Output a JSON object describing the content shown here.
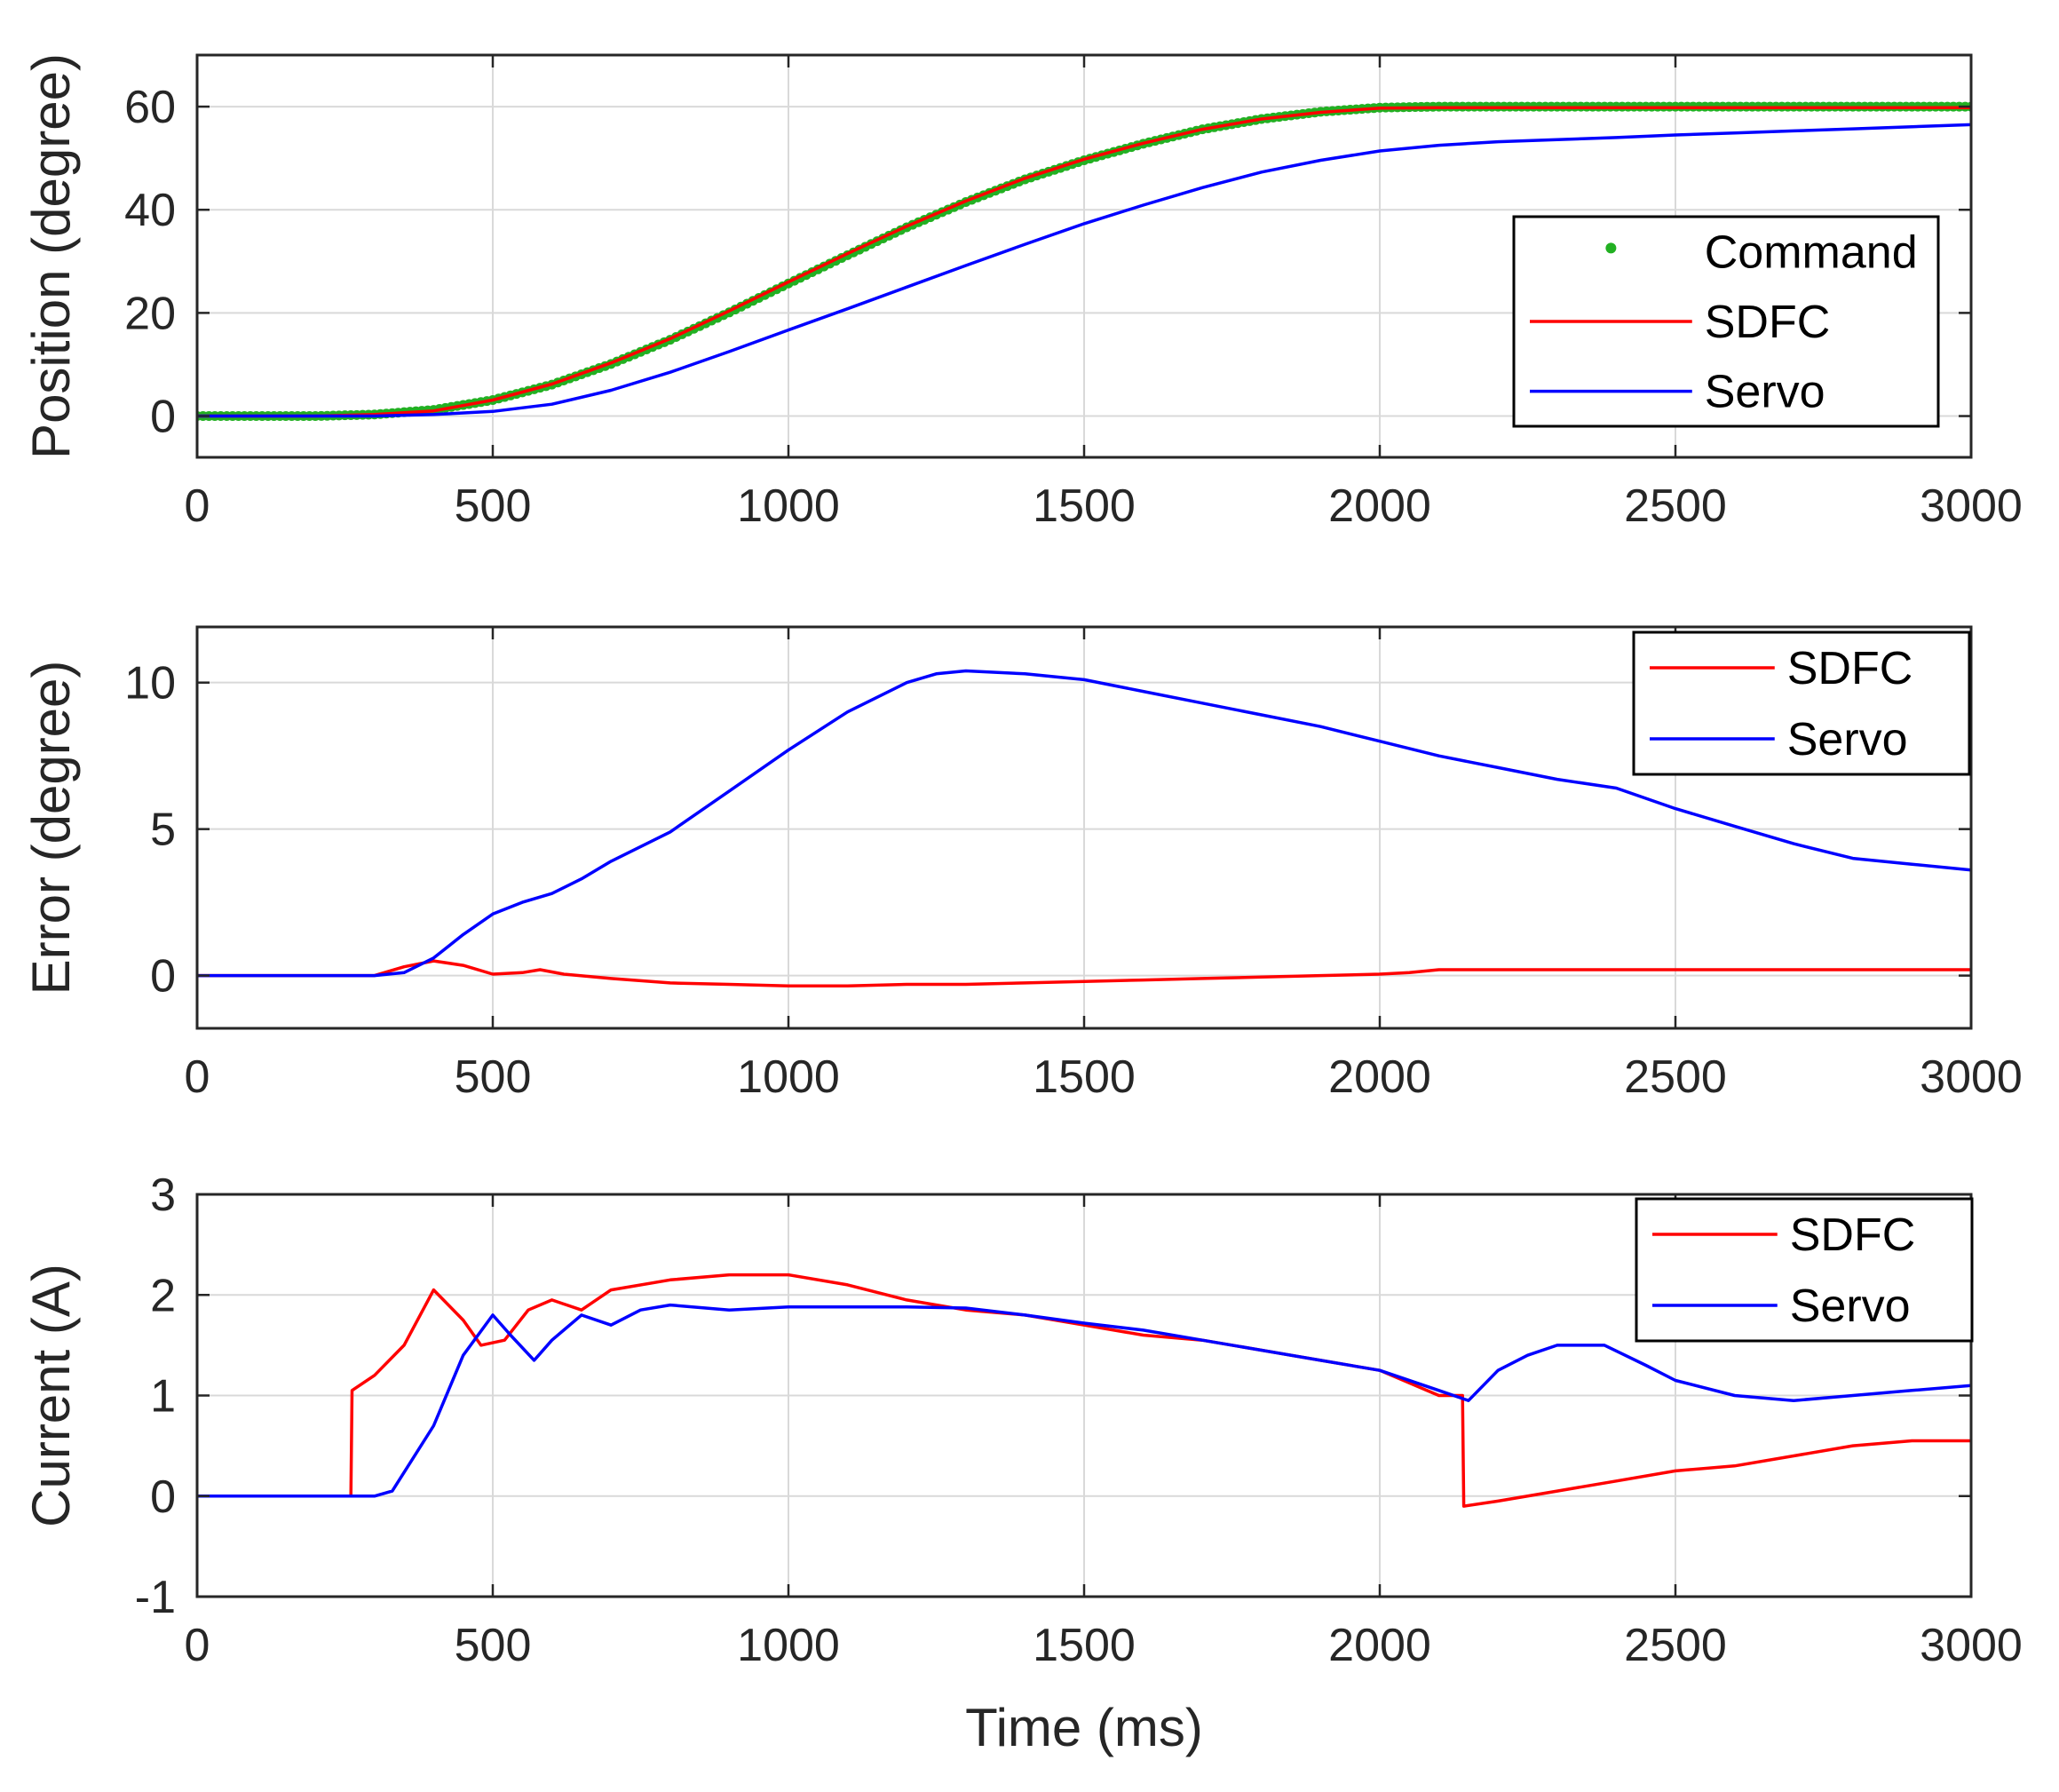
{
  "colors": {
    "command": "#22b022",
    "sdfc": "#ff0000",
    "servo": "#0000ff",
    "grid": "#d9d9d9",
    "axis": "#262626"
  },
  "chart_data": [
    {
      "type": "line",
      "title": "",
      "xlabel": "",
      "ylabel": "Position (degree)",
      "xlim": [
        0,
        3000
      ],
      "ylim": [
        -8,
        70
      ],
      "xticks": [
        0,
        500,
        1000,
        1500,
        2000,
        2500,
        3000
      ],
      "yticks": [
        0,
        20,
        40,
        60
      ],
      "xtick_labels": [
        "0",
        "500",
        "1000",
        "1500",
        "2000",
        "2500",
        "3000"
      ],
      "ytick_labels": [
        "0",
        "20",
        "40",
        "60"
      ],
      "grid": true,
      "legend_position": "right",
      "series": [
        {
          "name": "Command",
          "style": "markers",
          "x": [
            0,
            100,
            200,
            300,
            400,
            500,
            600,
            700,
            800,
            900,
            1000,
            1100,
            1200,
            1300,
            1400,
            1500,
            1600,
            1700,
            1800,
            1900,
            2000,
            2100,
            2200,
            2300,
            2400,
            2500,
            2600,
            2700,
            2800,
            2900,
            3000
          ],
          "y": [
            0,
            0,
            0,
            0.3,
            1.2,
            3.1,
            6.1,
            10.1,
            14.8,
            20.1,
            25.7,
            31.2,
            36.6,
            41.5,
            45.9,
            49.6,
            52.8,
            55.6,
            57.6,
            59.0,
            59.8,
            60,
            60,
            60,
            60,
            60,
            60,
            60,
            60,
            60,
            60
          ]
        },
        {
          "name": "SDFC",
          "style": "line",
          "x": [
            0,
            100,
            200,
            300,
            400,
            500,
            600,
            700,
            800,
            900,
            1000,
            1100,
            1200,
            1300,
            1400,
            1500,
            1600,
            1700,
            1800,
            1900,
            2000,
            2100,
            2200,
            2300,
            2400,
            2500,
            2600,
            2700,
            2800,
            2900,
            3000
          ],
          "y": [
            0,
            0,
            0,
            0.3,
            1.0,
            3.1,
            6.2,
            10.3,
            15.0,
            20.4,
            26.0,
            31.5,
            36.8,
            41.7,
            46.1,
            49.8,
            52.9,
            55.6,
            57.6,
            58.9,
            59.7,
            59.8,
            59.8,
            59.8,
            59.8,
            59.8,
            59.8,
            59.8,
            59.8,
            59.8,
            59.8
          ]
        },
        {
          "name": "Servo",
          "style": "line",
          "x": [
            0,
            100,
            200,
            300,
            400,
            500,
            600,
            700,
            800,
            900,
            1000,
            1100,
            1200,
            1300,
            1400,
            1500,
            1600,
            1700,
            1800,
            1900,
            2000,
            2100,
            2200,
            2300,
            2400,
            2500,
            2600,
            2700,
            2800,
            2900,
            3000
          ],
          "y": [
            0,
            0,
            0,
            0,
            0.3,
            0.9,
            2.3,
            5.0,
            8.5,
            12.5,
            16.7,
            20.8,
            25.0,
            29.2,
            33.3,
            37.3,
            40.9,
            44.3,
            47.3,
            49.6,
            51.4,
            52.5,
            53.2,
            53.6,
            54.0,
            54.5,
            54.9,
            55.3,
            55.7,
            56.1,
            56.5
          ]
        }
      ]
    },
    {
      "type": "line",
      "title": "",
      "xlabel": "",
      "ylabel": "Error (degree)",
      "xlim": [
        0,
        3000
      ],
      "ylim": [
        -1.8,
        11.9
      ],
      "xticks": [
        0,
        500,
        1000,
        1500,
        2000,
        2500,
        3000
      ],
      "yticks": [
        0,
        5,
        10
      ],
      "xtick_labels": [
        "0",
        "500",
        "1000",
        "1500",
        "2000",
        "2500",
        "3000"
      ],
      "ytick_labels": [
        "0",
        "5",
        "10"
      ],
      "grid": true,
      "legend_position": "top-right",
      "series": [
        {
          "name": "SDFC",
          "style": "line",
          "x": [
            0,
            100,
            200,
            300,
            350,
            400,
            450,
            500,
            550,
            580,
            620,
            700,
            800,
            900,
            1000,
            1100,
            1200,
            1300,
            1400,
            1500,
            1600,
            1700,
            1800,
            1900,
            2000,
            2050,
            2100,
            2200,
            2300,
            2400,
            2500,
            2600,
            2700,
            2800,
            2900,
            3000
          ],
          "y": [
            0,
            0,
            0,
            0,
            0.3,
            0.5,
            0.35,
            0.05,
            0.1,
            0.2,
            0.05,
            -0.1,
            -0.25,
            -0.3,
            -0.35,
            -0.35,
            -0.3,
            -0.3,
            -0.25,
            -0.2,
            -0.15,
            -0.1,
            -0.05,
            0.0,
            0.05,
            0.1,
            0.2,
            0.2,
            0.2,
            0.2,
            0.2,
            0.2,
            0.2,
            0.2,
            0.2,
            0.2
          ]
        },
        {
          "name": "Servo",
          "style": "line",
          "x": [
            0,
            100,
            200,
            300,
            350,
            400,
            450,
            500,
            550,
            600,
            650,
            700,
            800,
            900,
            1000,
            1100,
            1200,
            1250,
            1300,
            1350,
            1400,
            1500,
            1600,
            1700,
            1800,
            1900,
            2000,
            2100,
            2200,
            2300,
            2400,
            2500,
            2600,
            2700,
            2800,
            2900,
            3000
          ],
          "y": [
            0,
            0,
            0,
            0,
            0.1,
            0.6,
            1.4,
            2.1,
            2.5,
            2.8,
            3.3,
            3.9,
            4.9,
            6.3,
            7.7,
            9.0,
            10.0,
            10.3,
            10.4,
            10.35,
            10.3,
            10.1,
            9.7,
            9.3,
            8.9,
            8.5,
            8.0,
            7.5,
            7.1,
            6.7,
            6.4,
            5.7,
            5.1,
            4.5,
            4.0,
            3.8,
            3.6
          ]
        }
      ]
    },
    {
      "type": "line",
      "title": "",
      "xlabel": "Time (ms)",
      "ylabel": "Current (A)",
      "xlim": [
        0,
        3000
      ],
      "ylim": [
        -1,
        3
      ],
      "xticks": [
        0,
        500,
        1000,
        1500,
        2000,
        2500,
        3000
      ],
      "yticks": [
        -1,
        0,
        1,
        2,
        3
      ],
      "xtick_labels": [
        "0",
        "500",
        "1000",
        "1500",
        "2000",
        "2500",
        "3000"
      ],
      "ytick_labels": [
        "-1",
        "0",
        "1",
        "2",
        "3"
      ],
      "grid": true,
      "legend_position": "top-right",
      "series": [
        {
          "name": "SDFC",
          "style": "line",
          "x": [
            0,
            100,
            200,
            260,
            262,
            300,
            350,
            400,
            450,
            480,
            520,
            560,
            600,
            650,
            700,
            800,
            900,
            1000,
            1100,
            1200,
            1300,
            1400,
            1500,
            1600,
            1700,
            1800,
            1900,
            2000,
            2100,
            2140,
            2142,
            2200,
            2300,
            2400,
            2500,
            2600,
            2700,
            2800,
            2900,
            3000
          ],
          "y": [
            0,
            0,
            0,
            0,
            1.05,
            1.2,
            1.5,
            2.05,
            1.75,
            1.5,
            1.55,
            1.85,
            1.95,
            1.85,
            2.05,
            2.15,
            2.2,
            2.2,
            2.1,
            1.95,
            1.85,
            1.8,
            1.7,
            1.6,
            1.55,
            1.45,
            1.35,
            1.25,
            1.0,
            1.0,
            -0.1,
            -0.05,
            0.05,
            0.15,
            0.25,
            0.3,
            0.4,
            0.5,
            0.55,
            0.55
          ]
        },
        {
          "name": "Servo",
          "style": "line",
          "x": [
            0,
            100,
            200,
            300,
            330,
            400,
            450,
            500,
            530,
            570,
            600,
            650,
            700,
            750,
            800,
            900,
            1000,
            1100,
            1200,
            1300,
            1400,
            1500,
            1600,
            1700,
            1800,
            1900,
            2000,
            2100,
            2150,
            2200,
            2250,
            2300,
            2380,
            2450,
            2500,
            2600,
            2700,
            2800,
            2900,
            3000
          ],
          "y": [
            0,
            0,
            0,
            0,
            0.05,
            0.7,
            1.4,
            1.8,
            1.6,
            1.35,
            1.55,
            1.8,
            1.7,
            1.85,
            1.9,
            1.85,
            1.88,
            1.88,
            1.88,
            1.87,
            1.8,
            1.72,
            1.65,
            1.55,
            1.45,
            1.35,
            1.25,
            1.05,
            0.95,
            1.25,
            1.4,
            1.5,
            1.5,
            1.3,
            1.15,
            1.0,
            0.95,
            1.0,
            1.05,
            1.1
          ]
        }
      ]
    }
  ]
}
